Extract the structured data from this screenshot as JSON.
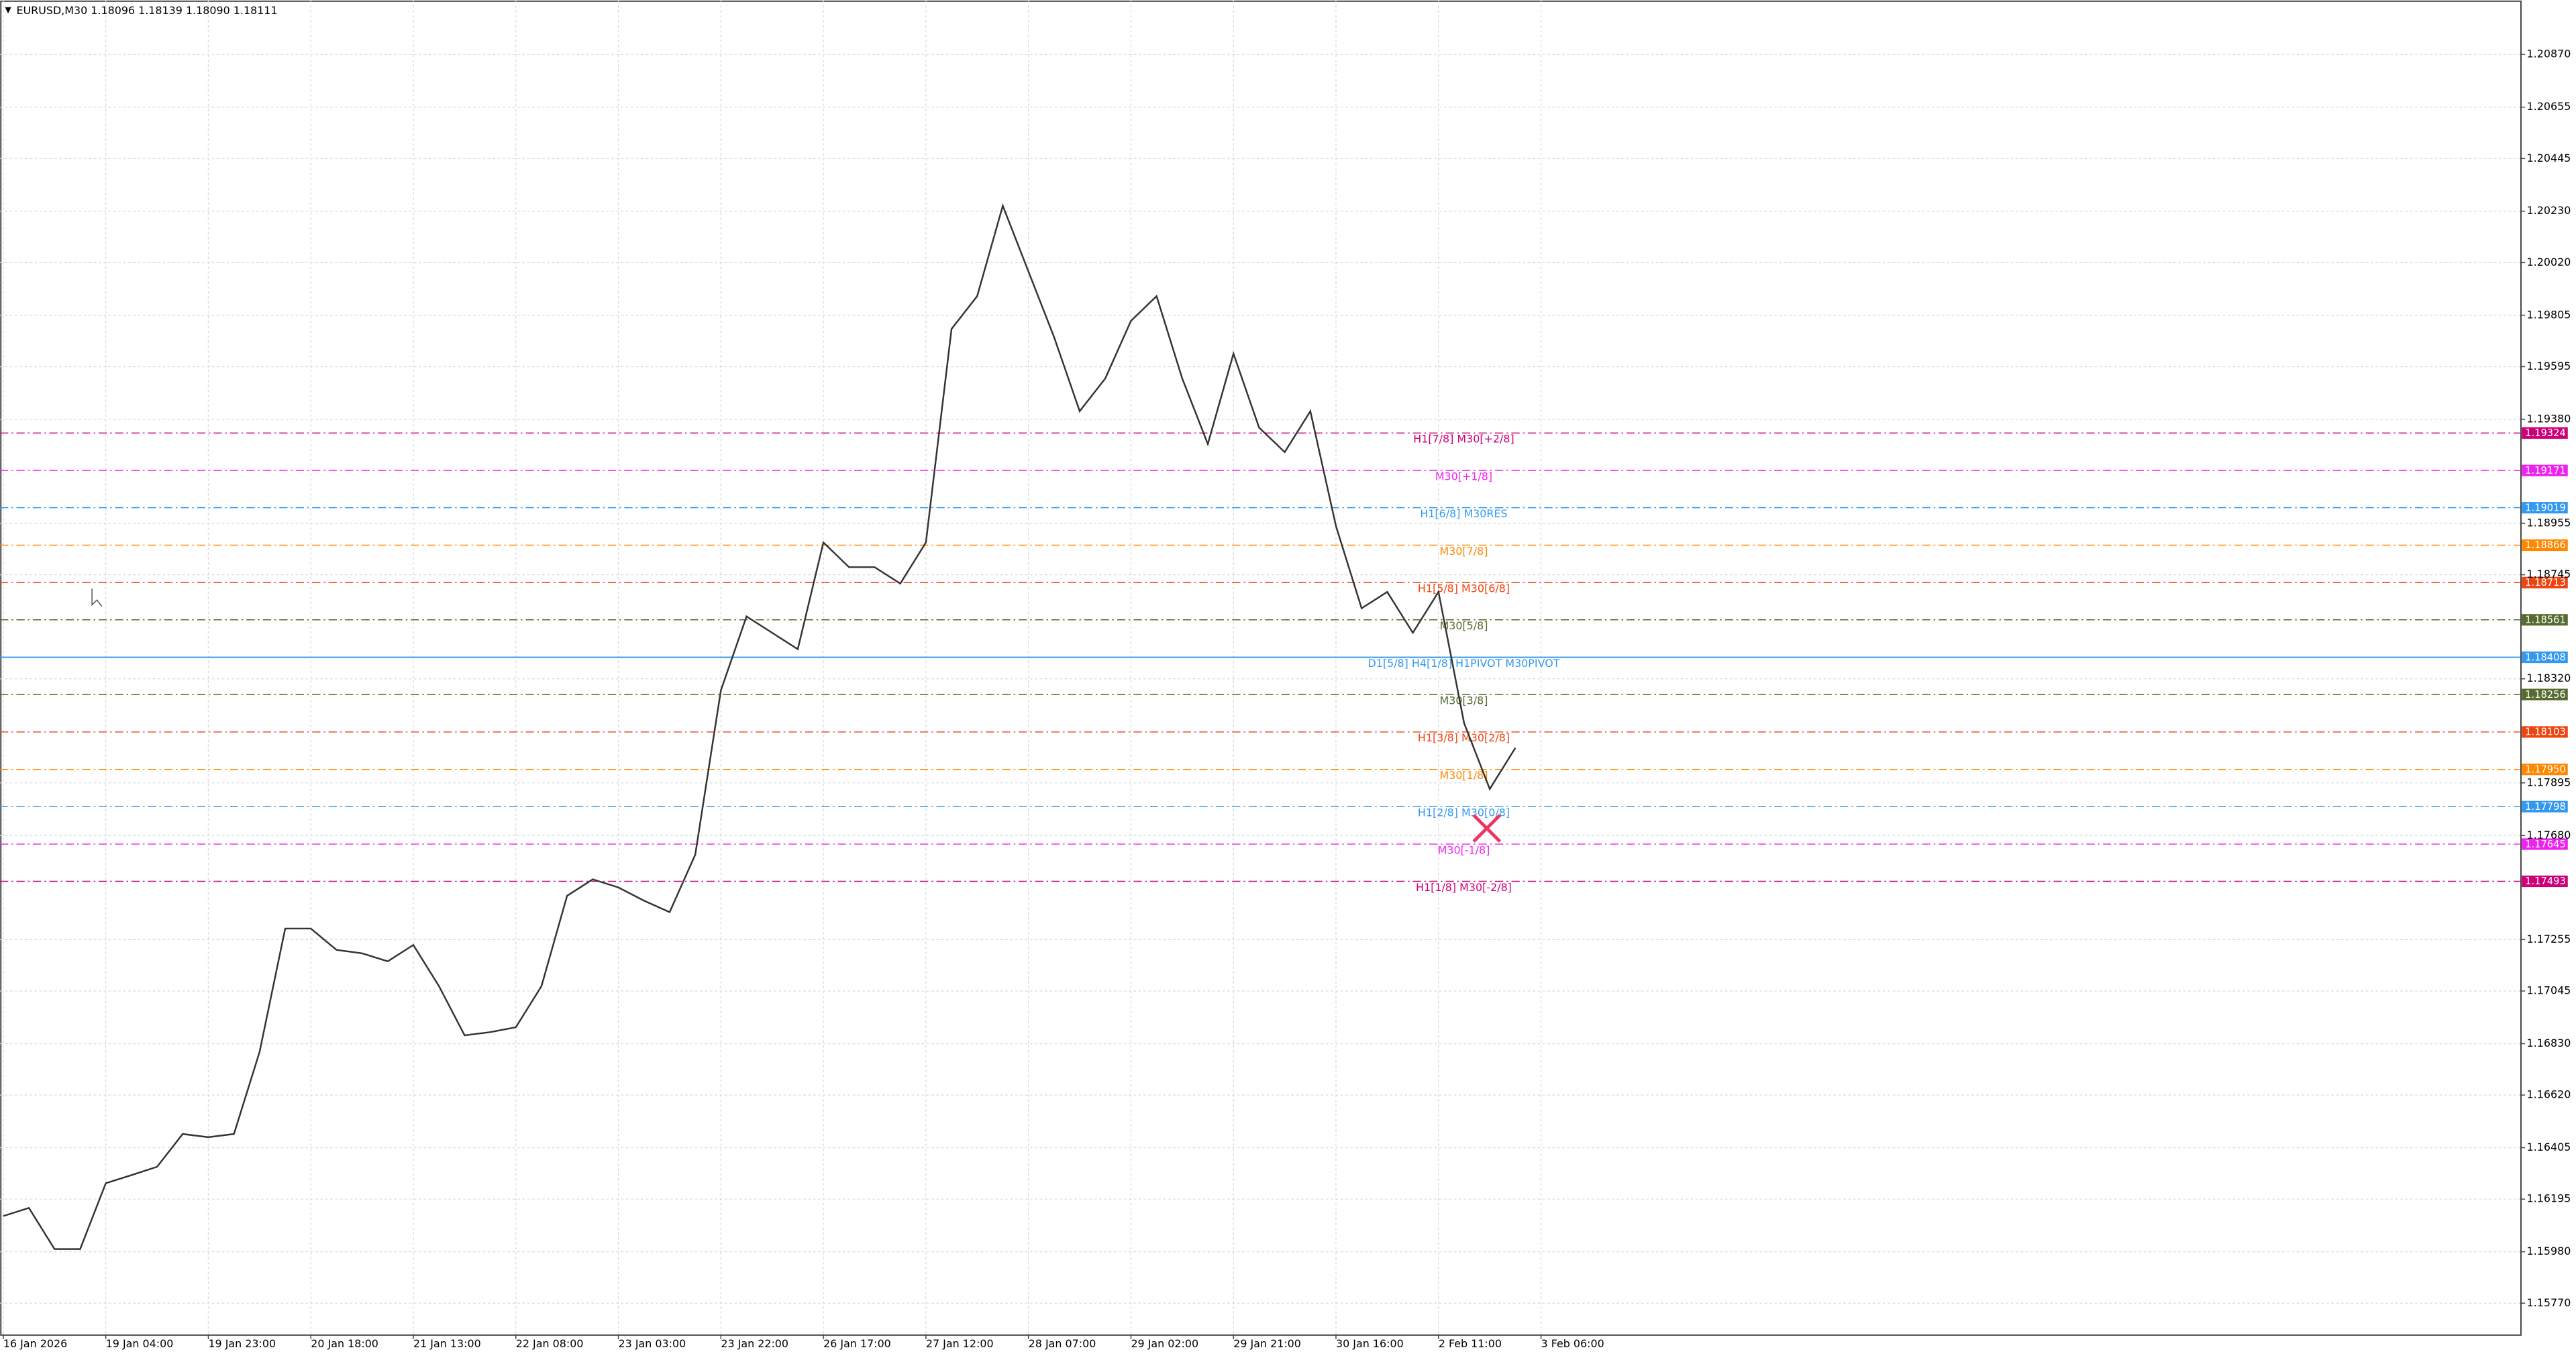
{
  "chart_data": {
    "type": "line",
    "title": "EURUSD,M30  1.18096 1.18139 1.18090 1.18111",
    "categories": [
      "16 Jan 2026",
      null,
      null,
      null,
      "19 Jan 04:00",
      null,
      null,
      null,
      "19 Jan 23:00",
      null,
      null,
      null,
      "20 Jan 18:00",
      null,
      null,
      null,
      "21 Jan 13:00",
      null,
      null,
      null,
      "22 Jan 08:00",
      null,
      null,
      null,
      "23 Jan 03:00",
      null,
      null,
      null,
      "23 Jan 22:00",
      null,
      null,
      null,
      "26 Jan 17:00",
      null,
      null,
      null,
      "27 Jan 12:00",
      null,
      null,
      null,
      "28 Jan 07:00",
      null,
      null,
      null,
      "29 Jan 02:00",
      null,
      null,
      null,
      "29 Jan 21:00",
      null,
      null,
      null,
      "30 Jan 16:00",
      null,
      null,
      null,
      "2 Feb 11:00",
      null,
      null,
      null,
      "3 Feb 06:00"
    ],
    "series": [
      {
        "name": "EURUSD",
        "color": "#333333",
        "values": [
          1.16126,
          1.16159,
          1.15991,
          1.15991,
          1.1626,
          1.16293,
          1.16327,
          1.16461,
          1.16448,
          1.16461,
          1.16796,
          1.173,
          1.173,
          1.17213,
          1.17199,
          1.17166,
          1.17233,
          1.17065,
          1.16864,
          1.16877,
          1.16897,
          1.17065,
          1.17434,
          1.17501,
          1.17468,
          1.17414,
          1.17367,
          1.17602,
          1.18273,
          1.18575,
          1.18508,
          1.18441,
          1.18877,
          1.18776,
          1.18776,
          1.18709,
          1.18877,
          1.19749,
          1.19883,
          1.20252,
          1.19984,
          1.19716,
          1.19413,
          1.19547,
          1.19782,
          1.19883,
          1.19547,
          1.19279,
          1.19648,
          1.19346,
          1.19246,
          1.19413,
          1.18944,
          1.18608,
          1.18675,
          1.18508,
          1.18675,
          1.18139,
          1.1787,
          1.18038,
          null
        ]
      }
    ],
    "ylim": [
      1.15643,
      1.21091
    ],
    "yticks": [
      {
        "value": 1.2087,
        "label": "1.20870"
      },
      {
        "value": 1.20655,
        "label": "1.20655"
      },
      {
        "value": 1.20445,
        "label": "1.20445"
      },
      {
        "value": 1.2023,
        "label": "1.20230"
      },
      {
        "value": 1.2002,
        "label": "1.20020"
      },
      {
        "value": 1.19805,
        "label": "1.19805"
      },
      {
        "value": 1.19595,
        "label": "1.19595"
      },
      {
        "value": 1.1938,
        "label": "1.19380"
      },
      {
        "value": 1.18955,
        "label": "1.18955"
      },
      {
        "value": 1.18745,
        "label": "1.18745"
      },
      {
        "value": 1.1832,
        "label": "1.18320"
      },
      {
        "value": 1.17895,
        "label": "1.17895"
      },
      {
        "value": 1.1768,
        "label": "1.17680"
      },
      {
        "value": 1.17255,
        "label": "1.17255"
      },
      {
        "value": 1.17045,
        "label": "1.17045"
      },
      {
        "value": 1.1683,
        "label": "1.16830"
      },
      {
        "value": 1.1662,
        "label": "1.16620"
      },
      {
        "value": 1.16405,
        "label": "1.16405"
      },
      {
        "value": 1.16195,
        "label": "1.16195"
      },
      {
        "value": 1.1598,
        "label": "1.15980"
      },
      {
        "value": 1.1577,
        "label": "1.15770"
      }
    ],
    "grid": true,
    "levels": [
      {
        "value": 1.19324,
        "value_label": "1.19324",
        "name": "H1[7/8] M30[+2/8]",
        "color": "#cc0077",
        "dash": true
      },
      {
        "value": 1.19171,
        "value_label": "1.19171",
        "name": "M30[+1/8]",
        "color": "#ee22ee",
        "dash": true
      },
      {
        "value": 1.19019,
        "value_label": "1.19019",
        "name": "H1[6/8] M30RES",
        "color": "#3399ee",
        "dash": true
      },
      {
        "value": 1.18866,
        "value_label": "1.18866",
        "name": "M30[7/8]",
        "color": "#ff8800",
        "dash": true
      },
      {
        "value": 1.18713,
        "value_label": "1.18713",
        "name": "H1[5/8] M30[6/8]",
        "color": "#ee4411",
        "dash": true
      },
      {
        "value": 1.18561,
        "value_label": "1.18561",
        "name": "M30[5/8]",
        "color": "#556b2f",
        "dash": true
      },
      {
        "value": 1.18408,
        "value_label": "1.18408",
        "name": "D1[5/8] H4[1/8] H1PIVOT M30PIVOT",
        "color": "#3399ee",
        "dash": false
      },
      {
        "value": 1.18256,
        "value_label": "1.18256",
        "name": "M30[3/8]",
        "color": "#556b2f",
        "dash": true
      },
      {
        "value": 1.18103,
        "value_label": "1.18103",
        "name": "H1[3/8] M30[2/8]",
        "color": "#ee4411",
        "dash": true
      },
      {
        "value": 1.1795,
        "value_label": "1.17950",
        "name": "M30[1/8]",
        "color": "#ff8800",
        "dash": true
      },
      {
        "value": 1.17798,
        "value_label": "1.17798",
        "name": "H1[2/8] M30[0/8]",
        "color": "#3399ee",
        "dash": true
      },
      {
        "value": 1.17645,
        "value_label": "1.17645",
        "name": "M30[-1/8]",
        "color": "#ee22ee",
        "dash": true
      },
      {
        "value": 1.17493,
        "value_label": "1.17493",
        "name": "H1[1/8] M30[-2/8]",
        "color": "#cc0077",
        "dash": true
      }
    ]
  }
}
